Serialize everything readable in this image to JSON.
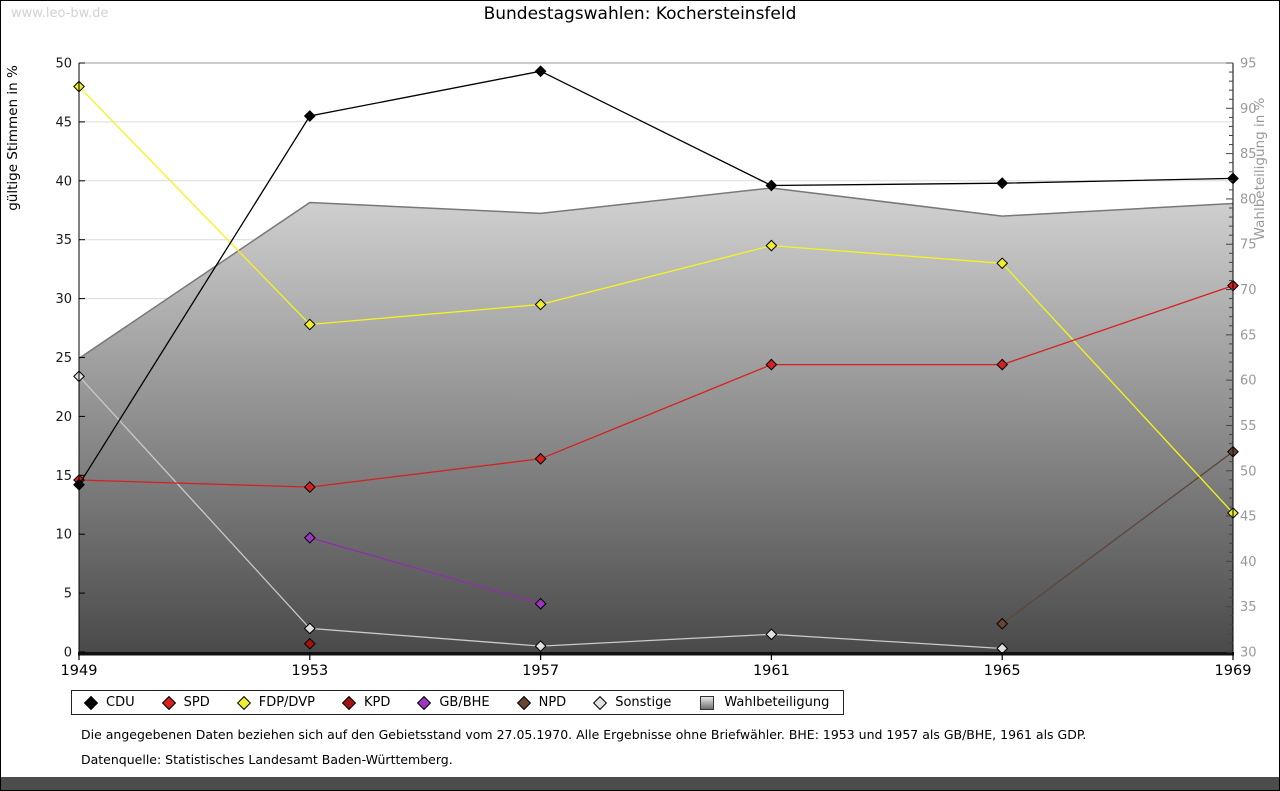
{
  "watermark": "www.leo-bw.de",
  "title": "Bundestagswahlen: Kochersteinsfeld",
  "chart_data": {
    "type": "line",
    "x": [
      1949,
      1953,
      1957,
      1961,
      1965,
      1969
    ],
    "ylabel_left": "gültige Stimmen in %",
    "ylabel_right": "Wahlbeteiligung in %",
    "ylim_left": [
      0,
      50
    ],
    "ylim_right": [
      30,
      95
    ],
    "left_ticks": [
      0,
      5,
      10,
      15,
      20,
      25,
      30,
      35,
      40,
      45,
      50
    ],
    "right_ticks": [
      30,
      35,
      40,
      45,
      50,
      55,
      60,
      65,
      70,
      75,
      80,
      85,
      90,
      95
    ],
    "grid": true,
    "legend_position": "bottom",
    "series": [
      {
        "name": "CDU",
        "marker": "diamond",
        "color": "#000000",
        "line_color": "#000000",
        "axis": "left",
        "points": [
          [
            1949,
            14.2
          ],
          [
            1953,
            45.5
          ],
          [
            1957,
            49.3
          ],
          [
            1961,
            39.6
          ],
          [
            1965,
            39.8
          ],
          [
            1969,
            40.2
          ]
        ]
      },
      {
        "name": "SPD",
        "marker": "diamond",
        "color": "#d42222",
        "line_color": "#d42222",
        "axis": "left",
        "points": [
          [
            1949,
            14.6
          ],
          [
            1953,
            14.0
          ],
          [
            1957,
            16.4
          ],
          [
            1961,
            24.4
          ],
          [
            1965,
            24.4
          ],
          [
            1969,
            31.1
          ]
        ]
      },
      {
        "name": "FDP/DVP",
        "marker": "diamond",
        "color": "#f0ee2a",
        "line_color": "#f4f41e",
        "axis": "left",
        "points": [
          [
            1949,
            48.0
          ],
          [
            1953,
            27.8
          ],
          [
            1957,
            29.5
          ],
          [
            1961,
            34.5
          ],
          [
            1965,
            33.0
          ],
          [
            1969,
            11.8
          ]
        ]
      },
      {
        "name": "KPD",
        "marker": "diamond",
        "color": "#a31111",
        "line_color": "#a31111",
        "axis": "left",
        "points": [
          [
            1953,
            0.7
          ]
        ]
      },
      {
        "name": "GB/BHE",
        "marker": "diamond",
        "color": "#9a36bf",
        "line_color": "#8d2fae",
        "axis": "left",
        "points": [
          [
            1953,
            9.7
          ],
          [
            1957,
            4.1
          ]
        ]
      },
      {
        "name": "NPD",
        "marker": "diamond",
        "color": "#6a4433",
        "line_color": "#5d4639",
        "axis": "left",
        "points": [
          [
            1965,
            2.4
          ],
          [
            1969,
            17.0
          ]
        ]
      },
      {
        "name": "Sonstige",
        "marker": "diamond",
        "color": "#e0e0e0",
        "line_color": "#c9c9c9",
        "axis": "left",
        "points": [
          [
            1949,
            23.4
          ],
          [
            1953,
            2.0
          ],
          [
            1957,
            0.5
          ],
          [
            1961,
            1.5
          ],
          [
            1965,
            0.3
          ]
        ]
      },
      {
        "name": "Wahlbeteiligung",
        "marker": "square",
        "type": "area",
        "color": "#b8b8b8",
        "line_color": "#787878",
        "axis": "right",
        "points": [
          [
            1949,
            62.4
          ],
          [
            1953,
            79.6
          ],
          [
            1957,
            78.4
          ],
          [
            1961,
            81.2
          ],
          [
            1965,
            78.1
          ],
          [
            1969,
            79.5
          ]
        ]
      }
    ]
  },
  "footer": {
    "line1": "Die angegebenen Daten beziehen sich auf den Gebietsstand vom 27.05.1970. Alle Ergebnisse ohne Briefwähler. BHE: 1953 und 1957 als GB/BHE, 1961 als GDP.",
    "line2": "Datenquelle: Statistisches Landesamt Baden-Württemberg."
  }
}
